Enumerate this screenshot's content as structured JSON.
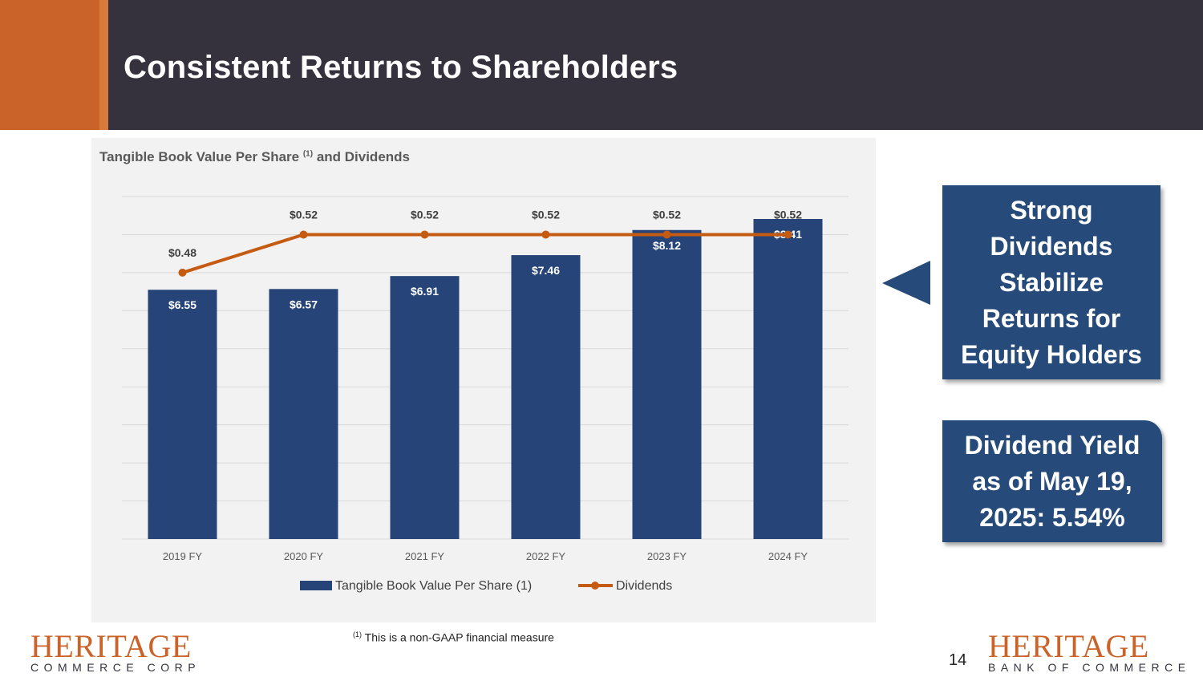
{
  "slide": {
    "title": "Consistent Returns to Shareholders",
    "page_number": "14",
    "footnote_marker": "(1)",
    "footnote_text": "This is a non-GAAP financial measure"
  },
  "callouts": {
    "strong_dividends": "Strong Dividends Stabilize Returns for Equity Holders",
    "dividend_yield": "Dividend Yield as of May 19, 2025: 5.54%"
  },
  "logos": {
    "left_main": "HERITAGE",
    "left_sub": "COMMERCE CORP",
    "right_main": "HERITAGE",
    "right_sub": "BANK OF COMMERCE"
  },
  "colors": {
    "header": "#35313d",
    "accent": "#c9632a",
    "bar": "#264478",
    "line": "#c55a11",
    "callout": "#264a7a"
  },
  "chart_data": {
    "type": "bar",
    "title_prefix": "Tangible Book Value Per Share",
    "title_marker": "(1)",
    "title_suffix": "and Dividends",
    "categories": [
      "2019 FY",
      "2020 FY",
      "2021 FY",
      "2022 FY",
      "2023 FY",
      "2024 FY"
    ],
    "series": [
      {
        "name": "Tangible Book Value Per Share (1)",
        "kind": "bar",
        "values": [
          6.55,
          6.57,
          6.91,
          7.46,
          8.12,
          8.41
        ],
        "labels": [
          "$6.55",
          "$6.57",
          "$6.91",
          "$7.46",
          "$8.12",
          "$8.41"
        ]
      },
      {
        "name": "Dividends",
        "kind": "line",
        "values": [
          0.48,
          0.52,
          0.52,
          0.52,
          0.52,
          0.52
        ],
        "labels": [
          "$0.48",
          "$0.52",
          "$0.52",
          "$0.52",
          "$0.52",
          "$0.52"
        ]
      }
    ],
    "bar_axis_range": [
      0,
      9
    ],
    "line_axis_range": [
      0.2,
      0.56
    ],
    "grid": true,
    "legend_position": "bottom"
  }
}
